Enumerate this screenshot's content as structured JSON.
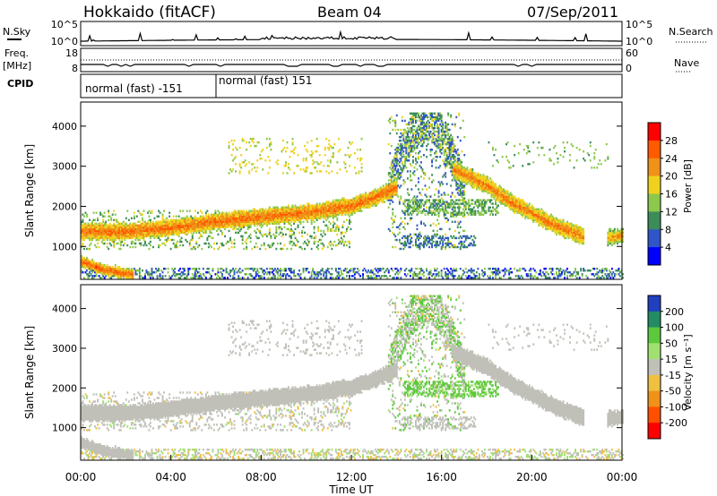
{
  "header": {
    "station": "Hokkaido (fitACF)",
    "beam": "Beam 04",
    "date": "07/Sep/2011"
  },
  "top_panels": {
    "nsky_label": "N.Sky",
    "nsky_ticks": [
      "10^5",
      "10^0"
    ],
    "nsearch_label": "N.Search",
    "nsearch_ticks": [
      "10^5",
      "10^0"
    ],
    "freq_label": "Freq.",
    "freq_unit": "[MHz]",
    "freq_ticks": [
      "18",
      "8"
    ],
    "nave_label": "Nave",
    "nave_ticks": [
      "60",
      "0"
    ],
    "cpid_label": "CPID",
    "cpid_segments": [
      {
        "label": "normal (fast) -151",
        "start_hour": 0,
        "end_hour": 6
      },
      {
        "label": "normal (fast) 151",
        "start_hour": 6,
        "end_hour": 24
      }
    ]
  },
  "chart_data": [
    {
      "type": "heatmap",
      "name": "power",
      "ylabel": "Slant Range [km]",
      "colorbar_label": "Power [dB]",
      "xlim": [
        0,
        24
      ],
      "ylim": [
        180,
        4600
      ],
      "y_ticks": [
        1000,
        2000,
        3000,
        4000
      ],
      "colorbar_ticks": [
        "28",
        "24",
        "20",
        "16",
        "12",
        "8",
        "4"
      ],
      "colors": [
        "#0000ff",
        "#2f55c8",
        "#3c8c5a",
        "#8cc84b",
        "#f0d21e",
        "#f09119",
        "#ff5a00",
        "#ff0000"
      ],
      "bands": [
        {
          "x": [
            0.0,
            1.0,
            2.0,
            2.3
          ],
          "y": [
            600,
            400,
            300,
            280
          ],
          "width": 180,
          "power": 28
        },
        {
          "x": [
            0.0,
            2.0,
            4.0,
            6.0,
            8.0,
            10.0,
            12.0,
            13.0,
            14.0
          ],
          "y": [
            1350,
            1350,
            1450,
            1600,
            1720,
            1820,
            2000,
            2200,
            2450
          ],
          "width": 320,
          "power": 27
        },
        {
          "x": [
            16.5,
            18.0,
            19.0,
            20.0,
            21.0,
            22.0,
            22.3
          ],
          "y": [
            2900,
            2500,
            2100,
            1800,
            1500,
            1300,
            1200
          ],
          "width": 320,
          "power": 26
        },
        {
          "x": [
            23.3,
            24.0
          ],
          "y": [
            1200,
            1250
          ],
          "width": 280,
          "power": 24
        }
      ]
    },
    {
      "type": "heatmap",
      "name": "velocity",
      "ylabel": "Slant Range [km]",
      "colorbar_label": "Velocity [m s⁻¹]",
      "xlabel": "Time UT",
      "xlim": [
        0,
        24
      ],
      "ylim": [
        180,
        4600
      ],
      "x_ticks": [
        "00:00",
        "04:00",
        "08:00",
        "12:00",
        "16:00",
        "20:00",
        "00:00"
      ],
      "y_ticks": [
        1000,
        2000,
        3000,
        4000
      ],
      "colorbar_ticks": [
        "200",
        "100",
        "50",
        "15",
        "-15",
        "-50",
        "-100",
        "-200"
      ],
      "colors": [
        "#2040c0",
        "#238c64",
        "#5cc83c",
        "#a0e070",
        "#c0c0b8",
        "#f0c040",
        "#f09119",
        "#ff5000",
        "#ff0000"
      ],
      "dominant_velocity": 0
    }
  ]
}
